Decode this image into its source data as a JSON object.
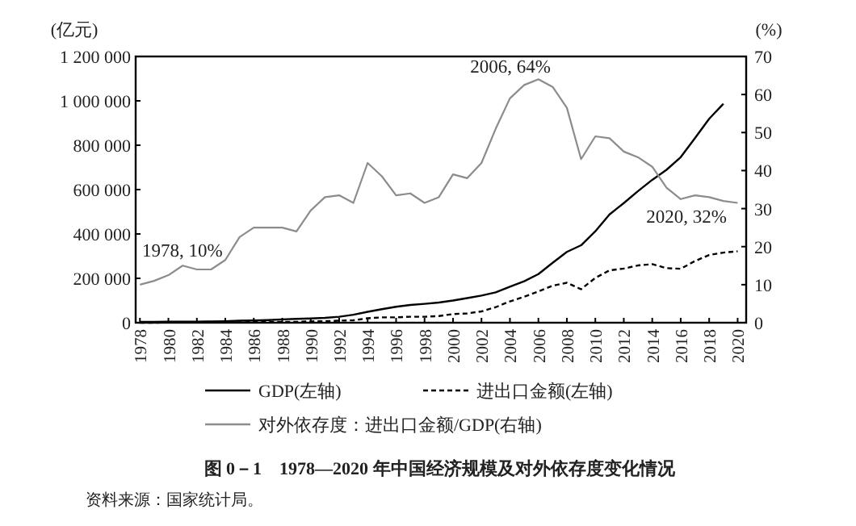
{
  "chart_data": {
    "type": "line",
    "title": "图 0－1　1978—2020 年中国经济规模及对外依存度变化情况",
    "ylabel": "(亿元)",
    "y2label": "(%)",
    "x": [
      1978,
      1979,
      1980,
      1981,
      1982,
      1983,
      1984,
      1985,
      1986,
      1987,
      1988,
      1989,
      1990,
      1991,
      1992,
      1993,
      1994,
      1995,
      1996,
      1997,
      1998,
      1999,
      2000,
      2001,
      2002,
      2003,
      2004,
      2005,
      2006,
      2007,
      2008,
      2009,
      2010,
      2011,
      2012,
      2013,
      2014,
      2015,
      2016,
      2017,
      2018,
      2019,
      2020
    ],
    "xlim": [
      1977.7,
      2020.6
    ],
    "xticks": [
      1978,
      1980,
      1982,
      1984,
      1986,
      1988,
      1990,
      1992,
      1994,
      1996,
      1998,
      2000,
      2002,
      2004,
      2006,
      2008,
      2010,
      2012,
      2014,
      2016,
      2018,
      2020
    ],
    "ylim": [
      0,
      1200000
    ],
    "yticks": [
      0,
      {
        "value": 200000,
        "label": "200 000"
      },
      {
        "value": 400000,
        "label": "400 000"
      },
      {
        "value": 600000,
        "label": "600 000"
      },
      {
        "value": 800000,
        "label": "800 000"
      },
      {
        "value": 1000000,
        "label": "1 000 000"
      },
      {
        "value": 1200000,
        "label": "1 200 000"
      }
    ],
    "y2lim": [
      0,
      70
    ],
    "y2ticks": [
      0,
      10,
      20,
      30,
      40,
      50,
      60,
      70
    ],
    "legend": "bottom",
    "series": [
      {
        "name": "GDP(左轴)",
        "color": "#000000",
        "line_style": "solid",
        "values": [
          4000,
          4000,
          5000,
          5000,
          5000,
          6000,
          7000,
          9000,
          10000,
          12000,
          15000,
          17000,
          19000,
          22000,
          27000,
          36000,
          49000,
          61000,
          72000,
          80000,
          85000,
          91000,
          100000,
          111000,
          122000,
          137000,
          162000,
          187000,
          219000,
          270000,
          319000,
          349000,
          412000,
          488000,
          539000,
          593000,
          644000,
          689000,
          746000,
          832000,
          919000,
          987000,
          null
        ]
      },
      {
        "name": "进出口金额(左轴)",
        "color": "#000000",
        "line_style": "dashed",
        "values": [
          0,
          0,
          1000,
          1000,
          1000,
          1000,
          1000,
          2000,
          3000,
          3000,
          4000,
          4000,
          6000,
          7000,
          9000,
          11000,
          20000,
          24000,
          24000,
          27000,
          27000,
          30000,
          39000,
          42000,
          51000,
          70000,
          96000,
          117000,
          141000,
          167000,
          180000,
          151000,
          202000,
          236000,
          244000,
          258000,
          264000,
          246000,
          243000,
          278000,
          305000,
          316000,
          322000
        ]
      },
      {
        "name": "对外依存度：进出口金额/GDP(右轴)",
        "color": "#8c8c8c",
        "line_style": "solid",
        "axis": "y2",
        "values": [
          10,
          11,
          12.5,
          15,
          14,
          14,
          16.5,
          22.5,
          25,
          25,
          25,
          24,
          29.5,
          33,
          33.5,
          31.5,
          42,
          38.5,
          33.5,
          34,
          31.5,
          33,
          39,
          38,
          42,
          51,
          59,
          62.5,
          64,
          62,
          56.5,
          43,
          49,
          48.5,
          45,
          43.5,
          41,
          35.5,
          32.5,
          33.5,
          33,
          32,
          31.5
        ]
      }
    ],
    "annotations": [
      "1978, 10%",
      "2006, 64%",
      "2020, 32%",
      "资料来源：国家统计局。"
    ]
  }
}
